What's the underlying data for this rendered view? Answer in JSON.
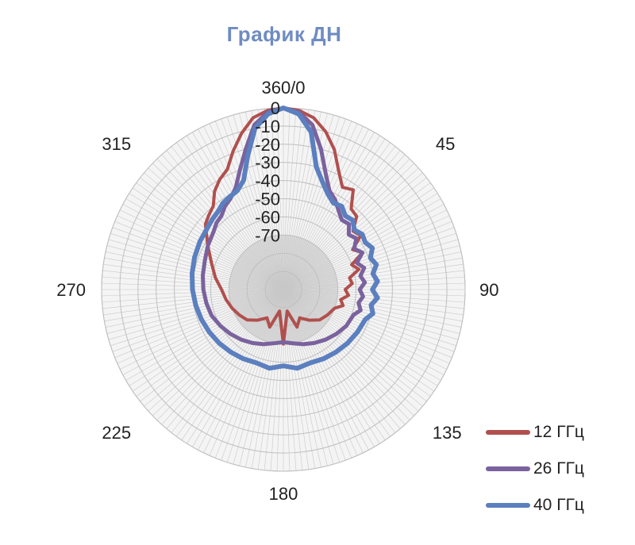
{
  "chart_data": {
    "type": "radar",
    "title": "График ДН",
    "title_color": "#6f8cc2",
    "angle_labels": [
      "360/0",
      "45",
      "90",
      "135",
      "180",
      "225",
      "270",
      "315"
    ],
    "angle_label_values": [
      0,
      45,
      90,
      135,
      180,
      225,
      270,
      315
    ],
    "radial_ticks": [
      "0",
      "-10",
      "-20",
      "-30",
      "-40",
      "-50",
      "-60",
      "-70"
    ],
    "radial_tick_values": [
      0,
      -10,
      -20,
      -30,
      -40,
      -50,
      -60,
      -70
    ],
    "r_range": [
      -100,
      0
    ],
    "grid": true,
    "legend_position": "bottom-right",
    "series": [
      {
        "name": "12 ГГц",
        "color": "#b0504e",
        "width": 4,
        "points": [
          [
            0,
            0
          ],
          [
            5,
            -1
          ],
          [
            10,
            -4
          ],
          [
            15,
            -10
          ],
          [
            20,
            -18
          ],
          [
            25,
            -28
          ],
          [
            30,
            -35
          ],
          [
            35,
            -33
          ],
          [
            40,
            -42
          ],
          [
            45,
            -43
          ],
          [
            50,
            -50
          ],
          [
            55,
            -48
          ],
          [
            60,
            -56
          ],
          [
            65,
            -52
          ],
          [
            70,
            -60
          ],
          [
            75,
            -57
          ],
          [
            80,
            -63
          ],
          [
            85,
            -62
          ],
          [
            90,
            -66
          ],
          [
            95,
            -64
          ],
          [
            100,
            -68
          ],
          [
            105,
            -66
          ],
          [
            110,
            -70
          ],
          [
            120,
            -72
          ],
          [
            130,
            -74
          ],
          [
            140,
            -78
          ],
          [
            150,
            -82
          ],
          [
            160,
            -78
          ],
          [
            170,
            -88
          ],
          [
            180,
            -70
          ],
          [
            190,
            -88
          ],
          [
            200,
            -78
          ],
          [
            210,
            -82
          ],
          [
            220,
            -78
          ],
          [
            230,
            -74
          ],
          [
            240,
            -72
          ],
          [
            250,
            -70
          ],
          [
            260,
            -68
          ],
          [
            270,
            -66
          ],
          [
            280,
            -62
          ],
          [
            290,
            -58
          ],
          [
            300,
            -52
          ],
          [
            310,
            -44
          ],
          [
            315,
            -42
          ],
          [
            320,
            -40
          ],
          [
            325,
            -34
          ],
          [
            330,
            -30
          ],
          [
            335,
            -27
          ],
          [
            340,
            -19
          ],
          [
            345,
            -11
          ],
          [
            350,
            -4
          ],
          [
            355,
            -1
          ]
        ]
      },
      {
        "name": "26 ГГц",
        "color": "#7a629e",
        "width": 5,
        "points": [
          [
            0,
            0
          ],
          [
            5,
            -2
          ],
          [
            10,
            -8
          ],
          [
            15,
            -20
          ],
          [
            20,
            -32
          ],
          [
            25,
            -40
          ],
          [
            30,
            -43
          ],
          [
            35,
            -47
          ],
          [
            40,
            -50
          ],
          [
            45,
            -49
          ],
          [
            50,
            -53
          ],
          [
            55,
            -51
          ],
          [
            60,
            -55
          ],
          [
            65,
            -52
          ],
          [
            70,
            -57
          ],
          [
            75,
            -54
          ],
          [
            80,
            -57
          ],
          [
            85,
            -55
          ],
          [
            90,
            -58
          ],
          [
            95,
            -56
          ],
          [
            100,
            -58
          ],
          [
            105,
            -56
          ],
          [
            110,
            -59
          ],
          [
            120,
            -60
          ],
          [
            130,
            -62
          ],
          [
            140,
            -64
          ],
          [
            150,
            -66
          ],
          [
            160,
            -68
          ],
          [
            170,
            -70
          ],
          [
            180,
            -71
          ],
          [
            190,
            -70
          ],
          [
            200,
            -68
          ],
          [
            210,
            -66
          ],
          [
            220,
            -64
          ],
          [
            230,
            -62
          ],
          [
            240,
            -60
          ],
          [
            250,
            -58
          ],
          [
            260,
            -57
          ],
          [
            270,
            -56
          ],
          [
            280,
            -55
          ],
          [
            290,
            -54
          ],
          [
            300,
            -52
          ],
          [
            310,
            -50
          ],
          [
            315,
            -48
          ],
          [
            320,
            -47
          ],
          [
            325,
            -44
          ],
          [
            330,
            -42
          ],
          [
            335,
            -38
          ],
          [
            340,
            -30
          ],
          [
            345,
            -20
          ],
          [
            350,
            -8
          ],
          [
            355,
            -2
          ]
        ]
      },
      {
        "name": "40 ГГц",
        "color": "#5b7fbf",
        "width": 6,
        "points": [
          [
            0,
            0
          ],
          [
            5,
            -3
          ],
          [
            10,
            -12
          ],
          [
            15,
            -30
          ],
          [
            20,
            -37
          ],
          [
            25,
            -42
          ],
          [
            30,
            -45
          ],
          [
            35,
            -44
          ],
          [
            40,
            -47
          ],
          [
            45,
            -46
          ],
          [
            50,
            -49
          ],
          [
            55,
            -47
          ],
          [
            60,
            -48
          ],
          [
            65,
            -46
          ],
          [
            70,
            -49
          ],
          [
            75,
            -47
          ],
          [
            80,
            -50
          ],
          [
            85,
            -48
          ],
          [
            90,
            -51
          ],
          [
            95,
            -48
          ],
          [
            100,
            -51
          ],
          [
            105,
            -49
          ],
          [
            110,
            -52
          ],
          [
            120,
            -53
          ],
          [
            130,
            -54
          ],
          [
            140,
            -55
          ],
          [
            150,
            -56
          ],
          [
            160,
            -57
          ],
          [
            170,
            -56
          ],
          [
            180,
            -58
          ],
          [
            190,
            -56
          ],
          [
            200,
            -57
          ],
          [
            210,
            -56
          ],
          [
            220,
            -55
          ],
          [
            230,
            -54
          ],
          [
            240,
            -53
          ],
          [
            250,
            -52
          ],
          [
            260,
            -51
          ],
          [
            270,
            -50
          ],
          [
            280,
            -49
          ],
          [
            290,
            -48
          ],
          [
            300,
            -47
          ],
          [
            310,
            -46
          ],
          [
            315,
            -45
          ],
          [
            320,
            -44
          ],
          [
            325,
            -42
          ],
          [
            330,
            -41
          ],
          [
            335,
            -40
          ],
          [
            340,
            -36
          ],
          [
            345,
            -24
          ],
          [
            350,
            -10
          ],
          [
            355,
            -3
          ]
        ]
      }
    ]
  }
}
